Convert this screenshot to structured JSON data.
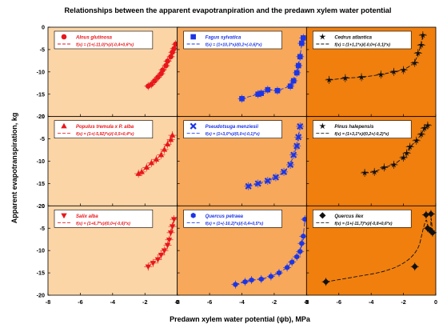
{
  "figure": {
    "title": "Relationships between the apparent evapotranpiration and the predawn xylem water potential",
    "xlabel": "Predawn xylem water potential (ψb), MPa",
    "ylabel": "Apparent evapotranspiration, kg",
    "colors": {
      "col1_bg": "#FCD5A7",
      "col2_bg": "#F7A85A",
      "col3_bg": "#F07F0E",
      "marker_panel_col1": "#E8171B",
      "marker_panel_col2": "#1C35E6",
      "marker_panel_col3": "#111111"
    }
  },
  "chart_data": {
    "type": "scatter",
    "xlim": [
      -8,
      0
    ],
    "ylim": [
      -20,
      0
    ],
    "x_ticks": [
      "-8",
      "-6",
      "-4",
      "-2",
      "0"
    ],
    "y_ticks": [
      "0",
      "-5",
      "-10",
      "-15",
      "-20"
    ],
    "x_tick_values": [
      -8,
      -6,
      -4,
      -2,
      0
    ],
    "y_tick_values": [
      0,
      -5,
      -10,
      -15,
      -20
    ],
    "panels": [
      {
        "species": "Alnus glutinosa",
        "formula": "f(x) = (1+(-11,0)*x)/(-0,4+0,6*x)",
        "color": "#E8171B",
        "marker": "circle",
        "points": [
          [
            -1.8,
            -13.2
          ],
          [
            -1.6,
            -12.8
          ],
          [
            -1.4,
            -12.0
          ],
          [
            -1.2,
            -11.2
          ],
          [
            -1.0,
            -10.4
          ],
          [
            -0.9,
            -9.6
          ],
          [
            -0.7,
            -8.6
          ],
          [
            -0.6,
            -7.6
          ],
          [
            -0.4,
            -6.6
          ],
          [
            -0.3,
            -5.6
          ],
          [
            -0.2,
            -4.8
          ],
          [
            -0.1,
            -3.8
          ]
        ]
      },
      {
        "species": "Fagus sylvatica",
        "formula": "f(x) = (1+10,3*x)/(0,2+(-0,6)*x)",
        "color": "#1C35E6",
        "marker": "square",
        "points": [
          [
            -4.0,
            -16.0
          ],
          [
            -3.0,
            -15.0
          ],
          [
            -2.8,
            -14.8
          ],
          [
            -2.4,
            -14.0
          ],
          [
            -1.8,
            -14.2
          ],
          [
            -1.0,
            -13.2
          ],
          [
            -0.8,
            -12.0
          ],
          [
            -0.6,
            -10.2
          ],
          [
            -0.5,
            -8.6
          ],
          [
            -0.4,
            -6.6
          ],
          [
            -0.3,
            -3.6
          ],
          [
            -0.2,
            -2.4
          ]
        ]
      },
      {
        "species": "Cedrus atlantica",
        "formula": "f(x) = (1+1,1*x)/(-0,0+(-0,1)*x)",
        "color": "#111111",
        "marker": "star",
        "points": [
          [
            -6.6,
            -11.8
          ],
          [
            -5.6,
            -11.4
          ],
          [
            -4.6,
            -11.2
          ],
          [
            -3.4,
            -10.6
          ],
          [
            -2.6,
            -10.0
          ],
          [
            -2.0,
            -9.6
          ],
          [
            -1.3,
            -8.0
          ],
          [
            -1.1,
            -5.8
          ],
          [
            -0.9,
            -4.0
          ],
          [
            -0.8,
            -1.8
          ]
        ]
      },
      {
        "species": "Populus tremula x P. alba",
        "formula": "f(x) = (1+(-5,92)*x)/(-0,5+0,4*x)",
        "color": "#E8171B",
        "marker": "triangle",
        "points": [
          [
            -2.4,
            -12.8
          ],
          [
            -2.2,
            -12.4
          ],
          [
            -1.9,
            -11.4
          ],
          [
            -1.6,
            -10.4
          ],
          [
            -1.3,
            -9.6
          ],
          [
            -1.0,
            -8.6
          ],
          [
            -0.8,
            -7.4
          ],
          [
            -0.6,
            -6.2
          ],
          [
            -0.4,
            -5.2
          ],
          [
            -0.3,
            -4.2
          ]
        ]
      },
      {
        "species": "Pseudotsuga menziesii",
        "formula": "f(x) = (1+3,0*x)/(0,0+(-0,1)*x)",
        "color": "#1C35E6",
        "marker": "x",
        "points": [
          [
            -3.6,
            -15.6
          ],
          [
            -3.0,
            -15.0
          ],
          [
            -2.4,
            -14.4
          ],
          [
            -1.9,
            -13.6
          ],
          [
            -1.4,
            -12.4
          ],
          [
            -1.0,
            -10.8
          ],
          [
            -0.8,
            -8.6
          ],
          [
            -0.6,
            -6.6
          ],
          [
            -0.5,
            -4.6
          ],
          [
            -0.4,
            -2.2
          ]
        ]
      },
      {
        "species": "Pinus halepensis",
        "formula": "f(x) = (1+3,1*x)/(0,2+(-0,2)*x)",
        "color": "#111111",
        "marker": "star",
        "points": [
          [
            -4.4,
            -12.6
          ],
          [
            -3.8,
            -12.4
          ],
          [
            -3.2,
            -11.4
          ],
          [
            -2.6,
            -10.8
          ],
          [
            -2.0,
            -9.2
          ],
          [
            -1.8,
            -8.2
          ],
          [
            -1.6,
            -6.8
          ],
          [
            -1.2,
            -5.4
          ],
          [
            -0.9,
            -4.0
          ],
          [
            -0.7,
            -2.6
          ],
          [
            -0.5,
            -2.0
          ]
        ]
      },
      {
        "species": "Salix alba",
        "formula": "f(x) = (1+6,7*x)/(0,0+(-0,6)*x)",
        "color": "#E8171B",
        "marker": "triangle-down",
        "points": [
          [
            -1.8,
            -13.6
          ],
          [
            -1.5,
            -12.8
          ],
          [
            -1.2,
            -12.0
          ],
          [
            -1.0,
            -11.0
          ],
          [
            -0.8,
            -10.0
          ],
          [
            -0.6,
            -8.8
          ],
          [
            -0.5,
            -7.6
          ],
          [
            -0.4,
            -6.0
          ],
          [
            -0.3,
            -4.6
          ],
          [
            -0.2,
            -3.0
          ]
        ]
      },
      {
        "species": "Quercus petraea",
        "formula": "f(x) = (1+(-10,2)*x)/(-0,4+0,5*x)",
        "color": "#1C35E6",
        "marker": "hexagon",
        "points": [
          [
            -4.4,
            -17.6
          ],
          [
            -3.8,
            -17.0
          ],
          [
            -3.4,
            -16.6
          ],
          [
            -2.8,
            -16.4
          ],
          [
            -2.2,
            -15.8
          ],
          [
            -1.7,
            -15.0
          ],
          [
            -1.2,
            -13.8
          ],
          [
            -0.9,
            -12.6
          ],
          [
            -0.6,
            -11.4
          ],
          [
            -0.4,
            -10.2
          ],
          [
            -0.3,
            -8.4
          ],
          [
            -0.2,
            -6.8
          ],
          [
            -0.1,
            -3.0
          ]
        ]
      },
      {
        "species": "Quercus ilex",
        "formula": "f(x) = (1+(-11,7)*x)/(-0,8+0,6*x)",
        "color": "#111111",
        "marker": "diamond",
        "points": [
          [
            -6.8,
            -17.0
          ],
          [
            -1.3,
            -13.6
          ],
          [
            -0.5,
            -5.0
          ],
          [
            -0.3,
            -5.6
          ],
          [
            -0.2,
            -6.0
          ],
          [
            -0.6,
            -2.0
          ],
          [
            -0.3,
            -1.8
          ]
        ]
      }
    ]
  }
}
